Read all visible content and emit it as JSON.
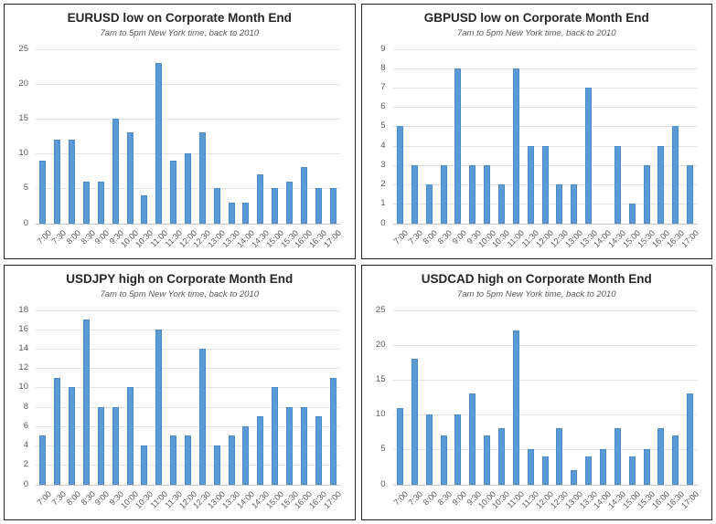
{
  "style": {
    "bar_color": "#5B9BD5",
    "bar_edge_color": "#4a8bc7",
    "grid_color": "#e4e4e4",
    "axis_color": "#c9c9c9",
    "title_color": "#262626",
    "subtitle_color": "#595959",
    "tick_color": "#595959",
    "panel_border_color": "#222222",
    "page_background": "#ffffff"
  },
  "chart_data": [
    {
      "type": "bar",
      "title": "EURUSD low on Corporate Month End",
      "subtitle": "7am to 5pm New York time, back to 2010",
      "xlabel": "",
      "ylabel": "",
      "grid": true,
      "legend": "none",
      "ylim": [
        0,
        25
      ],
      "ytick_step": 5,
      "categories": [
        "7:00",
        "7:30",
        "8:00",
        "8:30",
        "9:00",
        "9:30",
        "10:00",
        "10:30",
        "11:00",
        "11:30",
        "12:00",
        "12:30",
        "13:00",
        "13:30",
        "14:00",
        "14:30",
        "15:00",
        "15:30",
        "16:00",
        "16:30",
        "17:00"
      ],
      "values": [
        9,
        12,
        12,
        6,
        6,
        15,
        13,
        4,
        23,
        9,
        10,
        13,
        5,
        3,
        3,
        7,
        5,
        6,
        8,
        5,
        5
      ]
    },
    {
      "type": "bar",
      "title": "GBPUSD low on Corporate Month End",
      "subtitle": "7am to 5pm New York time, back to 2010",
      "xlabel": "",
      "ylabel": "",
      "grid": true,
      "legend": "none",
      "ylim": [
        0,
        9
      ],
      "ytick_step": 1,
      "categories": [
        "7:00",
        "7:30",
        "8:00",
        "8:30",
        "9:00",
        "9:30",
        "10:00",
        "10:30",
        "11:00",
        "11:30",
        "12:00",
        "12:30",
        "13:00",
        "13:30",
        "14:00",
        "14:30",
        "15:00",
        "15:30",
        "16:00",
        "16:30",
        "17:00"
      ],
      "values": [
        5,
        3,
        2,
        3,
        8,
        3,
        3,
        2,
        8,
        4,
        4,
        2,
        2,
        7,
        0,
        4,
        1,
        3,
        4,
        5,
        3
      ]
    },
    {
      "type": "bar",
      "title": "USDJPY high on Corporate Month End",
      "subtitle": "7am to 5pm New York time, back to 2010",
      "xlabel": "",
      "ylabel": "",
      "grid": true,
      "legend": "none",
      "ylim": [
        0,
        18
      ],
      "ytick_step": 2,
      "categories": [
        "7:00",
        "7:30",
        "8:00",
        "8:30",
        "9:00",
        "9:30",
        "10:00",
        "10:30",
        "11:00",
        "11:30",
        "12:00",
        "12:30",
        "13:00",
        "13:30",
        "14:00",
        "14:30",
        "15:00",
        "15:30",
        "16:00",
        "16:30",
        "17:00"
      ],
      "values": [
        5,
        11,
        10,
        17,
        8,
        8,
        10,
        4,
        16,
        5,
        5,
        14,
        4,
        5,
        6,
        7,
        10,
        8,
        8,
        7,
        11
      ]
    },
    {
      "type": "bar",
      "title": "USDCAD high on Corporate Month End",
      "subtitle": "7am to 5pm New York time, back to 2010",
      "xlabel": "",
      "ylabel": "",
      "grid": true,
      "legend": "none",
      "ylim": [
        0,
        25
      ],
      "ytick_step": 5,
      "categories": [
        "7:00",
        "7:30",
        "8:00",
        "8:30",
        "9:00",
        "9:30",
        "10:00",
        "10:30",
        "11:00",
        "11:30",
        "12:00",
        "12:30",
        "13:00",
        "13:30",
        "14:00",
        "14:30",
        "15:00",
        "15:30",
        "16:00",
        "16:30",
        "17:00"
      ],
      "values": [
        11,
        18,
        10,
        7,
        10,
        13,
        7,
        8,
        22,
        5,
        4,
        8,
        2,
        4,
        5,
        8,
        4,
        5,
        8,
        7,
        13
      ]
    }
  ]
}
